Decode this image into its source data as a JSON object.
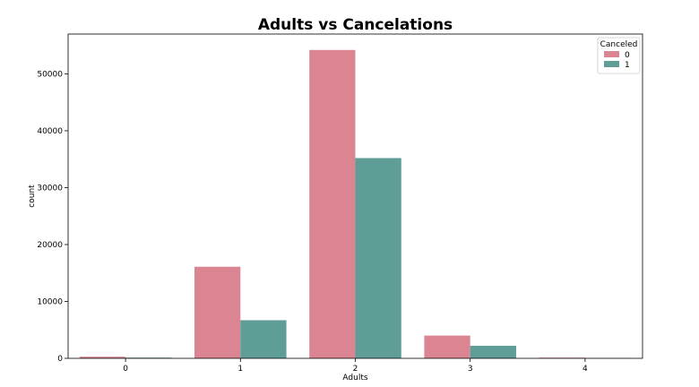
{
  "chart_data": {
    "type": "bar",
    "title": "Adults vs Cancelations",
    "xlabel": "Adults",
    "ylabel": "count",
    "categories": [
      "0",
      "1",
      "2",
      "3",
      "4"
    ],
    "series": [
      {
        "name": "0",
        "color": "#db8592",
        "values": [
          290,
          16100,
          54200,
          4000,
          120
        ]
      },
      {
        "name": "1",
        "color": "#5f9e96",
        "values": [
          120,
          6700,
          35200,
          2200,
          20
        ]
      }
    ],
    "ylim": [
      0,
      57000
    ],
    "yticks": [
      0,
      10000,
      20000,
      30000,
      40000,
      50000
    ],
    "legend": {
      "title": "Canceled",
      "placement": "top-right"
    },
    "grid": false
  }
}
